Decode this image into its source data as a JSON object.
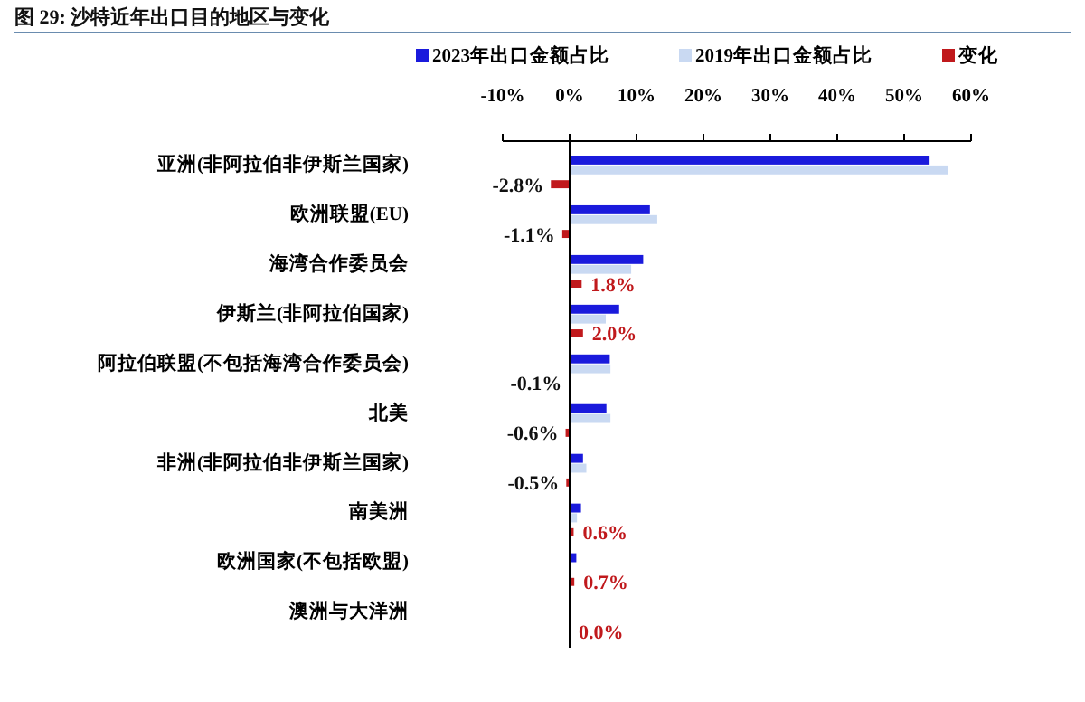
{
  "chart_data": {
    "type": "bar",
    "orientation": "horizontal",
    "title": "图 29:  沙特近年出口目的地区与变化",
    "categories": [
      "亚洲(非阿拉伯非伊斯兰国家)",
      "欧洲联盟(EU)",
      "海湾合作委员会",
      "伊斯兰(非阿拉伯国家)",
      "阿拉伯联盟(不包括海湾合作委员会)",
      "北美",
      "非洲(非阿拉伯非伊斯兰国家)",
      "南美洲",
      "欧洲国家(不包括欧盟)",
      "澳洲与大洋洲"
    ],
    "series": [
      {
        "name": "2023年出口金额占比",
        "color": "#1a1adc",
        "values": [
          53.8,
          12.0,
          11.0,
          7.4,
          6.0,
          5.5,
          2.0,
          1.7,
          1.0,
          0.1
        ]
      },
      {
        "name": "2019年出口金额占比",
        "color": "#c9d9f2",
        "values": [
          56.6,
          13.1,
          9.2,
          5.4,
          6.1,
          6.1,
          2.5,
          1.1,
          null,
          null
        ]
      },
      {
        "name": "变化",
        "color": "#c0191c",
        "values": [
          -2.8,
          -1.1,
          1.8,
          2.0,
          -0.1,
          -0.6,
          -0.5,
          0.6,
          0.7,
          0.0
        ],
        "value_labels": [
          "-2.8%",
          "-1.1%",
          "1.8%",
          "2.0%",
          "-0.1%",
          "-0.6%",
          "-0.5%",
          "0.6%",
          "0.7%",
          "0.0%"
        ]
      }
    ],
    "xlim": [
      -10,
      60
    ],
    "xticks": [
      {
        "value": -10,
        "label": "-10%"
      },
      {
        "value": 0,
        "label": "0%"
      },
      {
        "value": 10,
        "label": "10%"
      },
      {
        "value": 20,
        "label": "20%"
      },
      {
        "value": 30,
        "label": "30%"
      },
      {
        "value": 40,
        "label": "40%"
      },
      {
        "value": 50,
        "label": "50%"
      },
      {
        "value": 60,
        "label": "60%"
      }
    ],
    "legend": "top"
  }
}
